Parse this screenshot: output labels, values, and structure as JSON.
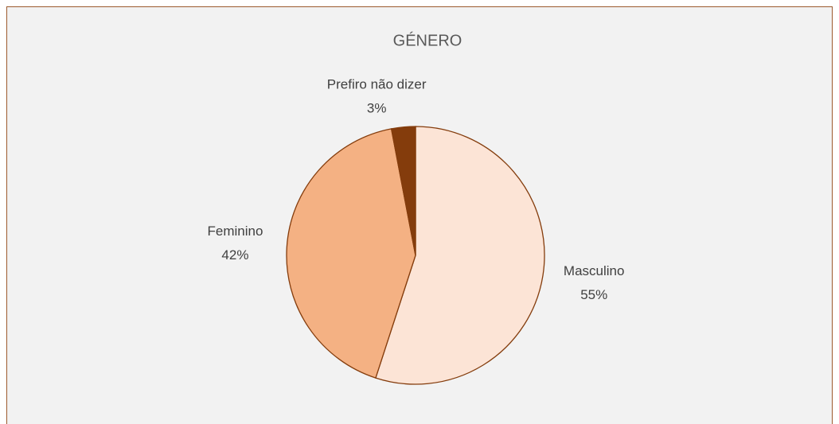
{
  "chart_data": {
    "type": "pie",
    "title": "GÉNERO",
    "categories": [
      "Masculino",
      "Feminino",
      "Prefiro não dizer"
    ],
    "values": [
      55,
      42,
      3
    ],
    "value_labels": [
      "55%",
      "42%",
      "3%"
    ],
    "colors": [
      "#fce4d6",
      "#f4b183",
      "#843c0c"
    ]
  }
}
